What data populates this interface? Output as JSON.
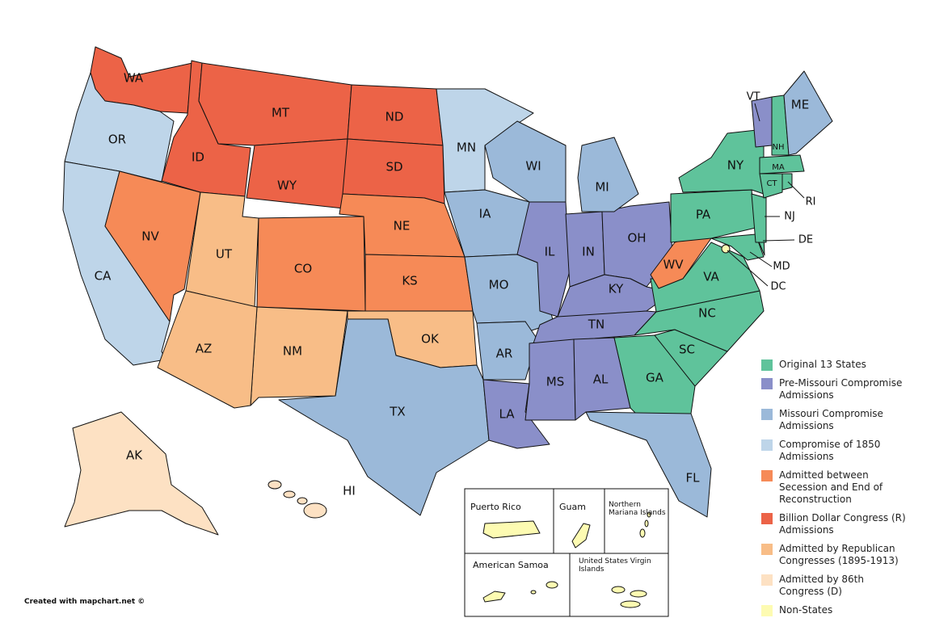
{
  "map": {
    "credit": "Created with mapchart.net ©",
    "groups": [
      {
        "label": "Original 13 States",
        "color": "#5fc39b",
        "states": [
          "NH",
          "MA",
          "RI",
          "CT",
          "NY",
          "NJ",
          "PA",
          "DE",
          "MD",
          "VA",
          "NC",
          "SC",
          "GA"
        ]
      },
      {
        "label": "Pre-Missouri Compromise Admissions",
        "color": "#8a8fc9",
        "states": [
          "VT",
          "KY",
          "TN",
          "OH",
          "LA",
          "IN",
          "MS",
          "IL",
          "AL"
        ]
      },
      {
        "label": "Missouri Compromise Admissions",
        "color": "#9bb9d9",
        "states": [
          "ME",
          "MO",
          "AR",
          "MI",
          "FL",
          "TX",
          "IA",
          "WI"
        ]
      },
      {
        "label": "Compromise of 1850 Admissions",
        "color": "#bed5e9",
        "states": [
          "CA",
          "MN",
          "OR"
        ]
      },
      {
        "label": "Admitted between Secession and End of Reconstruction",
        "color": "#f68a57",
        "states": [
          "KS",
          "WV",
          "NV",
          "NE",
          "CO"
        ]
      },
      {
        "label": "Billion Dollar Congress (R) Admissions",
        "color": "#ec6347",
        "states": [
          "ND",
          "SD",
          "MT",
          "WA",
          "ID",
          "WY"
        ]
      },
      {
        "label": "Admitted by Republican Congresses (1895-1913)",
        "color": "#f8bd87",
        "states": [
          "UT",
          "OK",
          "NM",
          "AZ"
        ]
      },
      {
        "label": "Admitted by 86th Congress (D)",
        "color": "#fde1c3",
        "states": [
          "AK",
          "HI"
        ]
      },
      {
        "label": "Non-States",
        "color": "#fdfbb2",
        "states": [
          "DC",
          "Puerto Rico",
          "Guam",
          "Northern Mariana Islands",
          "American Samoa",
          "United States Virgin Islands"
        ]
      }
    ]
  }
}
